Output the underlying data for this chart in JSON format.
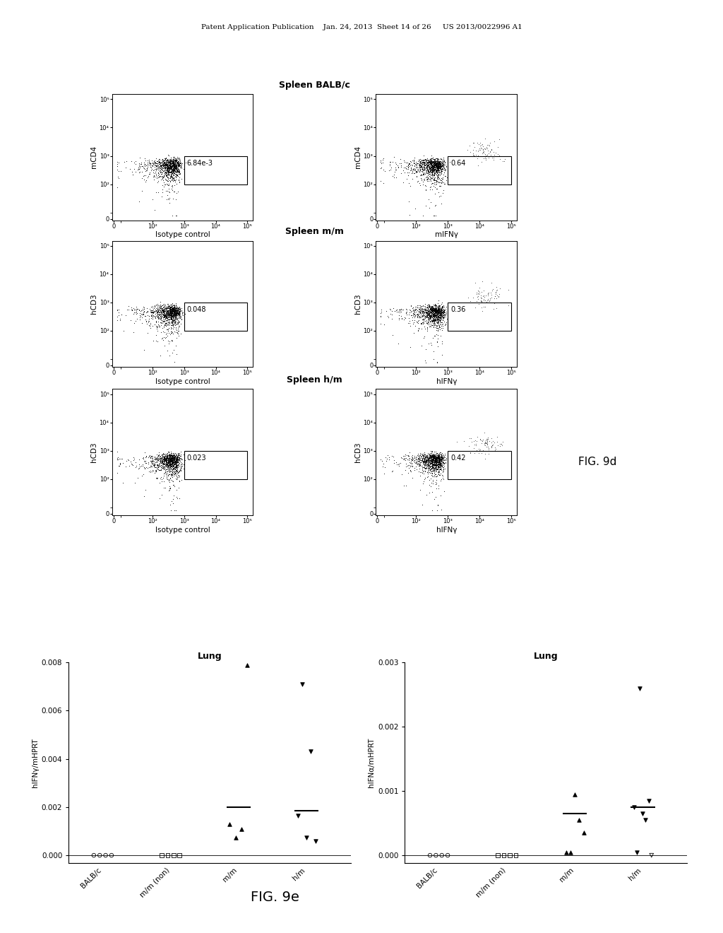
{
  "header_text": "Patent Application Publication    Jan. 24, 2013  Sheet 14 of 26     US 2013/0022996 A1",
  "fig9d_label": "FIG. 9d",
  "fig9e_label": "FIG. 9e",
  "flow_panels": [
    {
      "title": "Spleen BALB/c",
      "plots": [
        {
          "xlabel": "Isotype control",
          "ylabel": "mCD4",
          "gate_value": "6.84e-3",
          "has_gate_dots": false
        },
        {
          "xlabel": "mIFNγ",
          "ylabel": "mCD4",
          "gate_value": "0.64",
          "has_gate_dots": true
        }
      ]
    },
    {
      "title": "Spleen m/m",
      "plots": [
        {
          "xlabel": "Isotype control",
          "ylabel": "hCD3",
          "gate_value": "0.048",
          "has_gate_dots": false
        },
        {
          "xlabel": "hIFNγ",
          "ylabel": "hCD3",
          "gate_value": "0.36",
          "has_gate_dots": true
        }
      ]
    },
    {
      "title": "Spleen h/m",
      "plots": [
        {
          "xlabel": "Isotype control",
          "ylabel": "hCD3",
          "gate_value": "0.023",
          "has_gate_dots": false
        },
        {
          "xlabel": "hIFNγ",
          "ylabel": "hCD3",
          "gate_value": "0.42",
          "has_gate_dots": true
        }
      ]
    }
  ],
  "scatter_left": {
    "title": "Lung",
    "ylabel": "hIFNγ/mHPRT",
    "ylim": [
      0.0,
      0.008
    ],
    "yticks": [
      0.0,
      0.002,
      0.004,
      0.006,
      0.008
    ],
    "groups": [
      "BALB/c",
      "m/m (non)",
      "m/m",
      "h/m"
    ],
    "data": {
      "BALB/c": {
        "marker": "o",
        "values": [
          0.0,
          0.0,
          0.0,
          0.0
        ],
        "median": null
      },
      "m/m (non)": {
        "marker": "s",
        "values": [
          0.0,
          0.0,
          0.0,
          0.0
        ],
        "median": null
      },
      "m/m": {
        "marker": "^",
        "values": [
          0.00075,
          0.0011,
          0.0013,
          0.0079
        ],
        "median": 0.002
      },
      "h/m": {
        "marker": "v",
        "values": [
          0.0006,
          0.00075,
          0.00165,
          0.0043,
          0.0071
        ],
        "median": 0.00185
      }
    }
  },
  "scatter_right": {
    "title": "Lung",
    "ylabel": "hIFNα/mHPRT",
    "ylim": [
      0.0,
      0.003
    ],
    "yticks": [
      0.0,
      0.001,
      0.002,
      0.003
    ],
    "groups": [
      "BALB/c",
      "m/m (non)",
      "m/m",
      "h/m"
    ],
    "data": {
      "BALB/c": {
        "marker": "o",
        "values": [
          0.0,
          0.0,
          0.0,
          0.0
        ],
        "median": null
      },
      "m/m (non)": {
        "marker": "s",
        "values": [
          0.0,
          0.0,
          0.0,
          0.0
        ],
        "median": null
      },
      "m/m": {
        "marker": "^",
        "values": [
          5e-05,
          5e-05,
          0.00035,
          0.00055,
          0.00095
        ],
        "median": 0.00065
      },
      "h/m": {
        "marker": "v",
        "values": [
          0.0,
          5e-05,
          0.00055,
          0.00065,
          0.00075,
          0.00085,
          0.0026
        ],
        "median": 0.00075
      }
    }
  },
  "background_color": "#ffffff"
}
